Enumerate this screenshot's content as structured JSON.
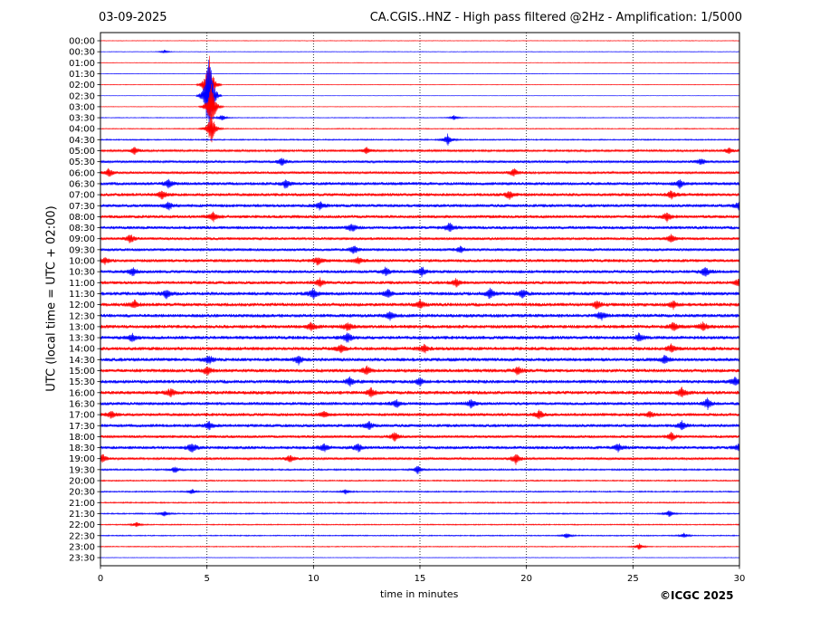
{
  "header": {
    "date": "03-09-2025",
    "title": "CA.CGIS..HNZ - High pass filtered @2Hz - Amplification: 1/5000"
  },
  "footer": {
    "copyright": "©ICGC 2025"
  },
  "colors": {
    "trace_red": "#ff0000",
    "trace_blue": "#0000ff",
    "axis": "#000000",
    "background": "#ffffff"
  },
  "chart_data": {
    "type": "line",
    "title": "CA.CGIS..HNZ - High pass filtered @2Hz - Amplification: 1/5000",
    "xlabel": "time in minutes",
    "ylabel": "UTC (local time = UTC + 02:00)",
    "xlim": [
      0,
      30
    ],
    "xticks": [
      0,
      5,
      10,
      15,
      20,
      25,
      30
    ],
    "vertical_gridlines_at": [
      5,
      10,
      15,
      20,
      25
    ],
    "grid": "vertical dotted lines at every 5 minutes",
    "trace_colors_alternate": [
      "red",
      "blue"
    ],
    "rows": [
      {
        "time": "00:00",
        "color": "red",
        "noise": 0.3,
        "events": []
      },
      {
        "time": "00:30",
        "color": "blue",
        "noise": 0.3,
        "events": [
          {
            "t": 3.0,
            "amp": 2
          }
        ]
      },
      {
        "time": "01:00",
        "color": "red",
        "noise": 0.3,
        "events": []
      },
      {
        "time": "01:30",
        "color": "blue",
        "noise": 0.3,
        "events": []
      },
      {
        "time": "02:00",
        "color": "red",
        "noise": 0.3,
        "events": [
          {
            "t": 5.1,
            "amp": 40
          }
        ]
      },
      {
        "time": "02:30",
        "color": "blue",
        "noise": 0.2,
        "events": [
          {
            "t": 5.1,
            "amp": 60
          }
        ]
      },
      {
        "time": "03:00",
        "color": "red",
        "noise": 0.3,
        "events": [
          {
            "t": 5.2,
            "amp": 30
          }
        ]
      },
      {
        "time": "03:30",
        "color": "blue",
        "noise": 0.4,
        "events": [
          {
            "t": 5.7,
            "amp": 4
          },
          {
            "t": 16.6,
            "amp": 3
          }
        ]
      },
      {
        "time": "04:00",
        "color": "red",
        "noise": 0.5,
        "events": [
          {
            "t": 5.2,
            "amp": 20
          }
        ]
      },
      {
        "time": "04:30",
        "color": "blue",
        "noise": 0.7,
        "events": [
          {
            "t": 16.3,
            "amp": 7
          }
        ]
      },
      {
        "time": "05:00",
        "color": "red",
        "noise": 1.2,
        "events": [
          {
            "t": 1.6,
            "amp": 5
          },
          {
            "t": 12.5,
            "amp": 4
          },
          {
            "t": 29.5,
            "amp": 4
          }
        ]
      },
      {
        "time": "05:30",
        "color": "blue",
        "noise": 1.4,
        "events": [
          {
            "t": 8.5,
            "amp": 5
          },
          {
            "t": 28.2,
            "amp": 4
          }
        ]
      },
      {
        "time": "06:00",
        "color": "red",
        "noise": 1.4,
        "events": [
          {
            "t": 0.4,
            "amp": 5
          },
          {
            "t": 19.4,
            "amp": 5
          }
        ]
      },
      {
        "time": "06:30",
        "color": "blue",
        "noise": 1.8,
        "events": [
          {
            "t": 3.2,
            "amp": 5
          },
          {
            "t": 8.7,
            "amp": 5
          },
          {
            "t": 27.2,
            "amp": 5
          }
        ]
      },
      {
        "time": "07:00",
        "color": "red",
        "noise": 1.8,
        "events": [
          {
            "t": 2.9,
            "amp": 5
          },
          {
            "t": 19.2,
            "amp": 5
          },
          {
            "t": 26.8,
            "amp": 5
          }
        ]
      },
      {
        "time": "07:30",
        "color": "blue",
        "noise": 1.8,
        "events": [
          {
            "t": 3.2,
            "amp": 5
          },
          {
            "t": 10.3,
            "amp": 5
          },
          {
            "t": 30.0,
            "amp": 6
          }
        ]
      },
      {
        "time": "08:00",
        "color": "red",
        "noise": 1.8,
        "events": [
          {
            "t": 5.3,
            "amp": 6
          },
          {
            "t": 26.6,
            "amp": 5
          }
        ]
      },
      {
        "time": "08:30",
        "color": "blue",
        "noise": 1.8,
        "events": [
          {
            "t": 11.8,
            "amp": 5
          },
          {
            "t": 16.4,
            "amp": 6
          }
        ]
      },
      {
        "time": "09:00",
        "color": "red",
        "noise": 1.6,
        "events": [
          {
            "t": 1.4,
            "amp": 5
          },
          {
            "t": 26.8,
            "amp": 5
          }
        ]
      },
      {
        "time": "09:30",
        "color": "blue",
        "noise": 1.6,
        "events": [
          {
            "t": 11.9,
            "amp": 5
          },
          {
            "t": 16.9,
            "amp": 4
          }
        ]
      },
      {
        "time": "10:00",
        "color": "red",
        "noise": 1.8,
        "events": [
          {
            "t": 0.2,
            "amp": 4
          },
          {
            "t": 10.2,
            "amp": 5
          },
          {
            "t": 12.1,
            "amp": 4
          }
        ]
      },
      {
        "time": "10:30",
        "color": "blue",
        "noise": 1.8,
        "events": [
          {
            "t": 1.5,
            "amp": 5
          },
          {
            "t": 13.4,
            "amp": 5
          },
          {
            "t": 15.1,
            "amp": 6
          },
          {
            "t": 28.4,
            "amp": 6
          }
        ]
      },
      {
        "time": "11:00",
        "color": "red",
        "noise": 1.8,
        "events": [
          {
            "t": 10.3,
            "amp": 5
          },
          {
            "t": 16.7,
            "amp": 5
          },
          {
            "t": 30.0,
            "amp": 6
          }
        ]
      },
      {
        "time": "11:30",
        "color": "blue",
        "noise": 2.0,
        "events": [
          {
            "t": 3.1,
            "amp": 5
          },
          {
            "t": 10.0,
            "amp": 6
          },
          {
            "t": 13.5,
            "amp": 5
          },
          {
            "t": 18.3,
            "amp": 6
          },
          {
            "t": 19.8,
            "amp": 5
          }
        ]
      },
      {
        "time": "12:00",
        "color": "red",
        "noise": 2.0,
        "events": [
          {
            "t": 1.6,
            "amp": 5
          },
          {
            "t": 15.0,
            "amp": 5
          },
          {
            "t": 23.3,
            "amp": 5
          },
          {
            "t": 26.9,
            "amp": 5
          }
        ]
      },
      {
        "time": "12:30",
        "color": "blue",
        "noise": 2.0,
        "events": [
          {
            "t": 13.6,
            "amp": 5
          },
          {
            "t": 23.5,
            "amp": 5
          }
        ]
      },
      {
        "time": "13:00",
        "color": "red",
        "noise": 2.0,
        "events": [
          {
            "t": 9.9,
            "amp": 5
          },
          {
            "t": 11.6,
            "amp": 5
          },
          {
            "t": 26.9,
            "amp": 5
          },
          {
            "t": 28.3,
            "amp": 5
          }
        ]
      },
      {
        "time": "13:30",
        "color": "blue",
        "noise": 2.0,
        "events": [
          {
            "t": 1.5,
            "amp": 5
          },
          {
            "t": 11.6,
            "amp": 6
          },
          {
            "t": 25.3,
            "amp": 5
          }
        ]
      },
      {
        "time": "14:00",
        "color": "red",
        "noise": 2.0,
        "events": [
          {
            "t": 11.3,
            "amp": 5
          },
          {
            "t": 15.2,
            "amp": 5
          },
          {
            "t": 26.8,
            "amp": 5
          }
        ]
      },
      {
        "time": "14:30",
        "color": "blue",
        "noise": 2.0,
        "events": [
          {
            "t": 5.1,
            "amp": 5
          },
          {
            "t": 9.3,
            "amp": 5
          },
          {
            "t": 26.5,
            "amp": 5
          }
        ]
      },
      {
        "time": "15:00",
        "color": "red",
        "noise": 2.0,
        "events": [
          {
            "t": 5.0,
            "amp": 5
          },
          {
            "t": 12.5,
            "amp": 5
          },
          {
            "t": 19.6,
            "amp": 5
          }
        ]
      },
      {
        "time": "15:30",
        "color": "blue",
        "noise": 2.0,
        "events": [
          {
            "t": 11.7,
            "amp": 5
          },
          {
            "t": 15.0,
            "amp": 5
          },
          {
            "t": 29.8,
            "amp": 5
          }
        ]
      },
      {
        "time": "16:00",
        "color": "red",
        "noise": 2.0,
        "events": [
          {
            "t": 3.3,
            "amp": 5
          },
          {
            "t": 12.7,
            "amp": 5
          },
          {
            "t": 27.3,
            "amp": 6
          }
        ]
      },
      {
        "time": "16:30",
        "color": "blue",
        "noise": 1.8,
        "events": [
          {
            "t": 13.9,
            "amp": 5
          },
          {
            "t": 17.4,
            "amp": 5
          },
          {
            "t": 28.5,
            "amp": 6
          }
        ]
      },
      {
        "time": "17:00",
        "color": "red",
        "noise": 1.8,
        "events": [
          {
            "t": 0.5,
            "amp": 4
          },
          {
            "t": 10.5,
            "amp": 4
          },
          {
            "t": 20.6,
            "amp": 5
          },
          {
            "t": 25.8,
            "amp": 4
          }
        ]
      },
      {
        "time": "17:30",
        "color": "blue",
        "noise": 1.8,
        "events": [
          {
            "t": 5.1,
            "amp": 5
          },
          {
            "t": 12.6,
            "amp": 5
          },
          {
            "t": 27.3,
            "amp": 5
          }
        ]
      },
      {
        "time": "18:00",
        "color": "red",
        "noise": 1.6,
        "events": [
          {
            "t": 13.8,
            "amp": 5
          },
          {
            "t": 26.8,
            "amp": 5
          }
        ]
      },
      {
        "time": "18:30",
        "color": "blue",
        "noise": 1.8,
        "events": [
          {
            "t": 4.3,
            "amp": 6
          },
          {
            "t": 10.5,
            "amp": 5
          },
          {
            "t": 12.1,
            "amp": 5
          },
          {
            "t": 24.3,
            "amp": 5
          },
          {
            "t": 30.0,
            "amp": 5
          }
        ]
      },
      {
        "time": "19:00",
        "color": "red",
        "noise": 1.4,
        "events": [
          {
            "t": 0.1,
            "amp": 5
          },
          {
            "t": 8.9,
            "amp": 5
          },
          {
            "t": 19.5,
            "amp": 6
          }
        ]
      },
      {
        "time": "19:30",
        "color": "blue",
        "noise": 0.9,
        "events": [
          {
            "t": 3.5,
            "amp": 4
          },
          {
            "t": 14.9,
            "amp": 5
          }
        ]
      },
      {
        "time": "20:00",
        "color": "red",
        "noise": 0.7,
        "events": []
      },
      {
        "time": "20:30",
        "color": "blue",
        "noise": 0.7,
        "events": [
          {
            "t": 4.3,
            "amp": 3
          },
          {
            "t": 11.5,
            "amp": 3
          }
        ]
      },
      {
        "time": "21:00",
        "color": "red",
        "noise": 0.7,
        "events": []
      },
      {
        "time": "21:30",
        "color": "blue",
        "noise": 0.7,
        "events": [
          {
            "t": 3.0,
            "amp": 3
          },
          {
            "t": 26.7,
            "amp": 4
          }
        ]
      },
      {
        "time": "22:00",
        "color": "red",
        "noise": 0.6,
        "events": [
          {
            "t": 1.7,
            "amp": 3
          }
        ]
      },
      {
        "time": "22:30",
        "color": "blue",
        "noise": 0.6,
        "events": [
          {
            "t": 21.9,
            "amp": 3
          },
          {
            "t": 27.4,
            "amp": 3
          }
        ]
      },
      {
        "time": "23:00",
        "color": "red",
        "noise": 0.5,
        "events": [
          {
            "t": 25.3,
            "amp": 4
          }
        ]
      },
      {
        "time": "23:30",
        "color": "blue",
        "noise": 0.3,
        "events": []
      }
    ]
  }
}
